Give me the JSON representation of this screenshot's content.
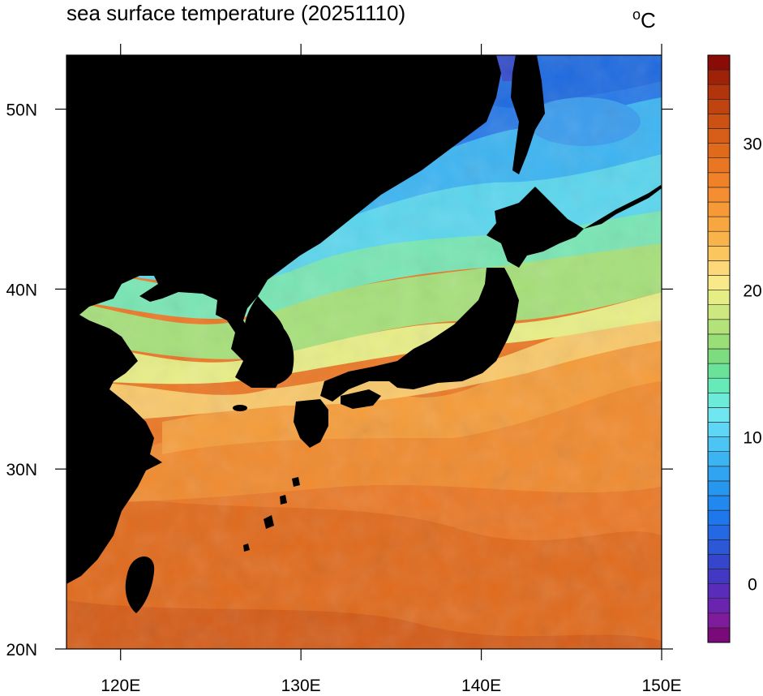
{
  "title": "sea surface temperature (20251110)",
  "units": {
    "degree": "o",
    "scale": "C"
  },
  "map": {
    "region": "Northwest Pacific / Japan",
    "lon_range": [
      117,
      150
    ],
    "lat_range": [
      20,
      53
    ],
    "lon_ticks": [
      {
        "value": 120,
        "label": "120E"
      },
      {
        "value": 130,
        "label": "130E"
      },
      {
        "value": 140,
        "label": "140E"
      },
      {
        "value": 150,
        "label": "150E"
      }
    ],
    "lat_ticks": [
      {
        "value": 20,
        "label": "20N"
      },
      {
        "value": 30,
        "label": "30N"
      },
      {
        "value": 40,
        "label": "40N"
      },
      {
        "value": 50,
        "label": "50N"
      }
    ],
    "land_color": "#000000"
  },
  "colorbar": {
    "min": -4,
    "max": 36,
    "levels": 40,
    "tick_labels": [
      {
        "value": 0,
        "label": "0"
      },
      {
        "value": 10,
        "label": "10"
      },
      {
        "value": 20,
        "label": "20"
      },
      {
        "value": 30,
        "label": "30"
      }
    ],
    "colors": [
      "#7a0a7a",
      "#7e1c9c",
      "#6a24b0",
      "#5a2cba",
      "#4238c4",
      "#3546cc",
      "#2c58d8",
      "#2468e4",
      "#1e78ec",
      "#2088ee",
      "#2696ee",
      "#30a4f0",
      "#3cb4f2",
      "#4cc4f4",
      "#60d6f6",
      "#70e6f0",
      "#6cecd8",
      "#66eab8",
      "#6ae29a",
      "#7edc80",
      "#9ade78",
      "#b4e27a",
      "#cce87e",
      "#e4ee84",
      "#f8ea88",
      "#fcd878",
      "#fbc65e",
      "#f8b44a",
      "#f7a640",
      "#f69a38",
      "#f48e30",
      "#ef8228",
      "#e87622",
      "#e06a1c",
      "#d65e18",
      "#cc5214",
      "#c04410",
      "#b0340c",
      "#9e2208",
      "#8a0c06"
    ]
  }
}
